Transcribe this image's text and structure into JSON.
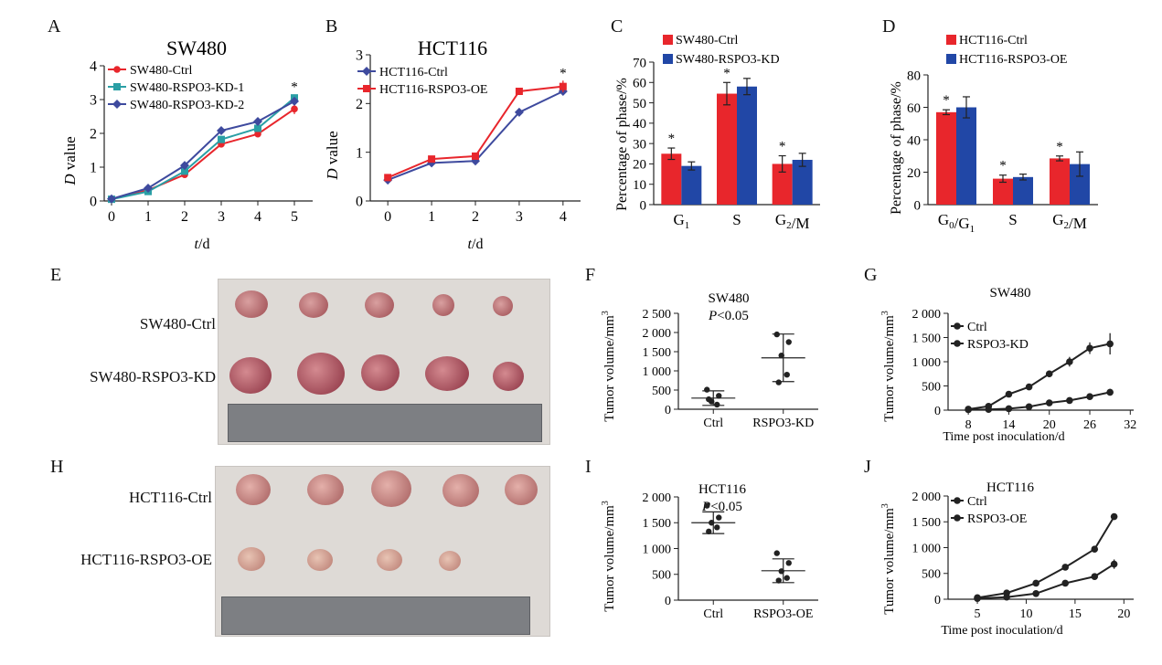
{
  "charts": {
    "A": {
      "letter": "A",
      "title": "SW480",
      "ylabel_var": "D",
      "ylabel_rest": " value",
      "xlabel_var": "t",
      "xlabel_rest": "/d",
      "ymax": 4,
      "star": "*",
      "ticks_y": [
        "0",
        "1",
        "2",
        "3",
        "4"
      ],
      "ticks_x": [
        "0",
        "1",
        "2",
        "3",
        "4",
        "5"
      ],
      "legend": [
        "SW480-Ctrl",
        "SW480-RSPO3-KD-1",
        "SW480-RSPO3-KD-2"
      ]
    },
    "B": {
      "letter": "B",
      "title": "HCT116",
      "ylabel_var": "D",
      "ylabel_rest": " value",
      "xlabel_var": "t",
      "xlabel_rest": "/d",
      "ymax": 3,
      "star": "*",
      "ticks_y": [
        "0",
        "1",
        "2",
        "3"
      ],
      "ticks_x": [
        "0",
        "1",
        "2",
        "3",
        "4"
      ],
      "legend": [
        "HCT116-Ctrl",
        "HCT116-RSPO3-OE"
      ]
    },
    "C": {
      "letter": "C",
      "ylabel": "Percentage of phase/%",
      "ymax": 70,
      "star": "*",
      "ticks_y": [
        "0",
        "10",
        "20",
        "30",
        "40",
        "50",
        "60",
        "70"
      ],
      "legend": [
        "SW480-Ctrl",
        "SW480-RSPO3-KD"
      ]
    },
    "D": {
      "letter": "D",
      "ylabel": "Percentage of phase/%",
      "ymax": 80,
      "star": "*",
      "ticks_y": [
        "0",
        "20",
        "40",
        "60",
        "80"
      ],
      "legend": [
        "HCT116-Ctrl",
        "HCT116-RSPO3-OE"
      ]
    },
    "F": {
      "letter": "F",
      "title": "SW480",
      "pvalue_var": "P",
      "pvalue_rest": "<0.05",
      "ylabel": "Tumor volume/mm",
      "ylabel_sup": "3",
      "ymax": 2500,
      "ticks_y": [
        "0",
        "500",
        "1 000",
        "1 500",
        "2 000",
        "2 500"
      ],
      "groups": [
        "Ctrl",
        "RSPO3-KD"
      ]
    },
    "G": {
      "letter": "G",
      "title": "SW480",
      "ylabel": "Tumor volume/mm",
      "ylabel_sup": "3",
      "xlabel": "Time post inoculation/d",
      "ymax": 2000,
      "ticks_y": [
        "0",
        "500",
        "1 000",
        "1 500",
        "2 000"
      ],
      "ticks_x": [
        "8",
        "14",
        "20",
        "26",
        "32"
      ],
      "legend": [
        "Ctrl",
        "RSPO3-KD"
      ]
    },
    "I": {
      "letter": "I",
      "title": "HCT116",
      "pvalue_var": "P",
      "pvalue_rest": "<0.05",
      "ylabel": "Tumor volume/mm",
      "ylabel_sup": "3",
      "ymax": 2000,
      "ticks_y": [
        "0",
        "500",
        "1 000",
        "1 500",
        "2 000"
      ],
      "groups": [
        "Ctrl",
        "RSPO3-OE"
      ]
    },
    "J": {
      "letter": "J",
      "title": "HCT116",
      "ylabel": "Tumor volume/mm",
      "ylabel_sup": "3",
      "xlabel": "Time post inoculation/d",
      "ymax": 2000,
      "ticks_y": [
        "0",
        "500",
        "1 000",
        "1 500",
        "2 000"
      ],
      "ticks_x": [
        "5",
        "10",
        "15",
        "20"
      ],
      "legend": [
        "Ctrl",
        "RSPO3-OE"
      ]
    }
  },
  "photos": {
    "E": {
      "letter": "E",
      "row_labels": [
        "SW480-Ctrl",
        "SW480-RSPO3-KD"
      ]
    },
    "H": {
      "letter": "H",
      "row_labels": [
        "HCT116-Ctrl",
        "HCT116-RSPO3-OE"
      ]
    }
  },
  "colors": {
    "red": "#e8262c",
    "teal": "#2a9fa5",
    "blue": "#3e4a9e",
    "bar_blue": "#2147a6",
    "black": "#222222"
  },
  "chart_data": [
    {
      "panel": "A",
      "type": "line",
      "x": [
        0,
        1,
        2,
        3,
        4,
        5
      ],
      "ylim": [
        0,
        4
      ],
      "series": [
        {
          "name": "SW480-Ctrl",
          "values": [
            0.05,
            0.32,
            0.78,
            1.68,
            1.98,
            2.72
          ],
          "err": [
            0.02,
            0.03,
            0.05,
            0.07,
            0.06,
            0.15
          ]
        },
        {
          "name": "SW480-RSPO3-KD-1",
          "values": [
            0.05,
            0.28,
            0.88,
            1.82,
            2.15,
            3.05
          ],
          "err": [
            0.02,
            0.03,
            0.05,
            0.07,
            0.06,
            0.1
          ]
        },
        {
          "name": "SW480-RSPO3-KD-2",
          "values": [
            0.06,
            0.38,
            1.05,
            2.08,
            2.35,
            2.95
          ],
          "err": [
            0.02,
            0.03,
            0.05,
            0.06,
            0.06,
            0.1
          ]
        }
      ]
    },
    {
      "panel": "B",
      "type": "line",
      "x": [
        0,
        1,
        2,
        3,
        4
      ],
      "ylim": [
        0,
        3
      ],
      "series": [
        {
          "name": "HCT116-Ctrl",
          "values": [
            0.43,
            0.78,
            0.82,
            1.82,
            2.25
          ],
          "err": [
            0.02,
            0.03,
            0.03,
            0.08,
            0.06
          ]
        },
        {
          "name": "HCT116-RSPO3-OE",
          "values": [
            0.48,
            0.86,
            0.92,
            2.25,
            2.35
          ],
          "err": [
            0.02,
            0.03,
            0.03,
            0.07,
            0.12
          ]
        }
      ]
    },
    {
      "panel": "C",
      "type": "bar",
      "categories": [
        "G1",
        "S",
        "G2/M"
      ],
      "ylim": [
        0,
        70
      ],
      "series": [
        {
          "name": "SW480-Ctrl",
          "values": [
            25,
            54.5,
            20
          ],
          "err": [
            2.8,
            5.5,
            4
          ]
        },
        {
          "name": "SW480-RSPO3-KD",
          "values": [
            19,
            58,
            22
          ],
          "err": [
            2,
            4,
            3.2
          ]
        }
      ]
    },
    {
      "panel": "D",
      "type": "bar",
      "categories": [
        "G0/G1",
        "S",
        "G2/M"
      ],
      "ylim": [
        0,
        80
      ],
      "series": [
        {
          "name": "HCT116-Ctrl",
          "values": [
            57,
            16,
            28.5
          ],
          "err": [
            1.5,
            2.2,
            1.5
          ]
        },
        {
          "name": "HCT116-RSPO3-OE",
          "values": [
            60,
            17,
            25
          ],
          "err": [
            6.5,
            1.8,
            7.5
          ]
        }
      ]
    },
    {
      "panel": "F",
      "type": "scatter",
      "categories": [
        "Ctrl",
        "RSPO3-KD"
      ],
      "ylim": [
        0,
        2500
      ],
      "groups": [
        {
          "name": "Ctrl",
          "points": [
            510,
            350,
            200,
            120,
            260
          ],
          "mean": 290,
          "sd": 190
        },
        {
          "name": "RSPO3-KD",
          "points": [
            1950,
            1750,
            1400,
            900,
            700
          ],
          "mean": 1340,
          "sd": 620
        }
      ]
    },
    {
      "panel": "G",
      "type": "line",
      "x": [
        8,
        11,
        14,
        17,
        20,
        23,
        26,
        29
      ],
      "ylim": [
        0,
        2000
      ],
      "series": [
        {
          "name": "Ctrl",
          "values": [
            20,
            80,
            330,
            480,
            750,
            1000,
            1280,
            1370
          ],
          "err": [
            10,
            20,
            40,
            50,
            70,
            100,
            120,
            220
          ]
        },
        {
          "name": "RSPO3-KD",
          "values": [
            10,
            15,
            30,
            70,
            150,
            200,
            280,
            370
          ],
          "err": [
            5,
            5,
            10,
            15,
            20,
            25,
            40,
            70
          ]
        }
      ]
    },
    {
      "panel": "I",
      "type": "scatter",
      "categories": [
        "Ctrl",
        "RSPO3-OE"
      ],
      "ylim": [
        0,
        2000
      ],
      "groups": [
        {
          "name": "Ctrl",
          "points": [
            1830,
            1600,
            1500,
            1410,
            1330
          ],
          "mean": 1500,
          "sd": 210
        },
        {
          "name": "RSPO3-OE",
          "points": [
            910,
            720,
            560,
            430,
            380
          ],
          "mean": 570,
          "sd": 230
        }
      ]
    },
    {
      "panel": "J",
      "type": "line",
      "x": [
        5,
        8,
        11,
        14,
        17,
        19
      ],
      "ylim": [
        0,
        2000
      ],
      "series": [
        {
          "name": "Ctrl",
          "values": [
            30,
            120,
            310,
            620,
            970,
            1600
          ],
          "err": [
            10,
            20,
            30,
            40,
            50,
            60
          ]
        },
        {
          "name": "RSPO3-OE",
          "values": [
            15,
            40,
            110,
            310,
            440,
            680
          ],
          "err": [
            5,
            10,
            15,
            25,
            40,
            90
          ]
        }
      ]
    }
  ]
}
